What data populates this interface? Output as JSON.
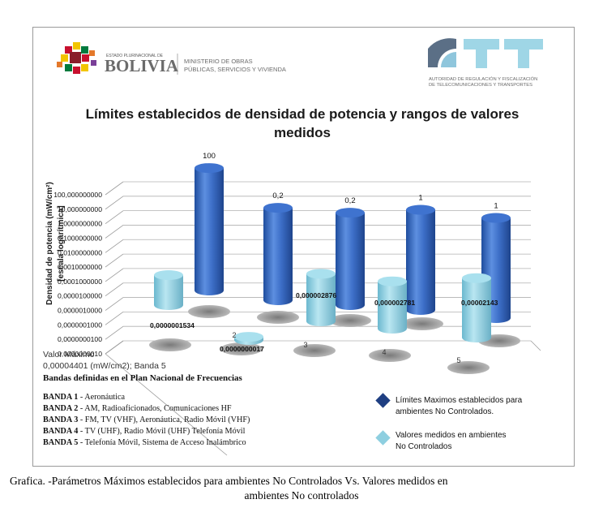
{
  "header": {
    "bolivia_small": "ESTADO PLURINACIONAL DE",
    "bolivia_big": "BOLIVIA",
    "ministry_line1": "MINISTERIO DE OBRAS",
    "ministry_line2": "PÚBLICAS, SERVICIOS Y VIVIENDA",
    "att_logo": "ATT",
    "att_line1": "AUTORIDAD DE REGULACIÓN Y FISCALIZACIÓN",
    "att_line2": "DE TELECOMUNICACIONES Y TRANSPORTES"
  },
  "chart_data": {
    "type": "bar",
    "subtype": "3d-cylinder",
    "title_line1": "Límites establecidos de densidad de potencia y rangos de valores",
    "title_line2": "medidos",
    "ylabel_line1": "Densidad de potencia (mW/cm²)",
    "ylabel_line2": "[escala logarítmica]",
    "yscale": "log",
    "ylim": [
      1e-09,
      100
    ],
    "ytick_labels": [
      "100,000000000",
      "10,000000000",
      "1,0000000000",
      "0,1000000000",
      "0,0100000000",
      "0,0010000000",
      "0,0001000000",
      "0,0000100000",
      "0,0000010000",
      "0,0000001000",
      "0,0000000100",
      "0,0000000010"
    ],
    "categories": [
      "1",
      "2",
      "3",
      "4",
      "5"
    ],
    "series": [
      {
        "name": "Límites  Maximos establecidos para ambientes No Controlados.",
        "color": "#2f5fb8",
        "values": [
          100,
          0.2,
          0.2,
          1,
          1
        ],
        "labels": [
          "100",
          "0,2",
          "0,2",
          "1",
          "1"
        ]
      },
      {
        "name": "Valores medidos en ambientes No Controlados",
        "color": "#8ecfe0",
        "values": [
          1.534e-07,
          1.7e-09,
          2.876e-06,
          2.781e-06,
          2.143e-05
        ],
        "labels": [
          "0,0000001534",
          "0,0000000017",
          "0,000002876",
          "0,000002781",
          "0,00002143"
        ]
      }
    ],
    "grid": true,
    "legend_position": "bottom-right",
    "annotation_line1": "Valor  Máximo",
    "annotation_line2": "0,00004401 (mW/cm2); Banda 5"
  },
  "bands": {
    "title": "Bandas definidas en el Plan Nacional de Frecuencias",
    "items": [
      {
        "name": "BANDA 1",
        "desc": " - Aeronáutica"
      },
      {
        "name": "BANDA 2",
        "desc": " - AM, Radioaficionados, Comunicaciones HF"
      },
      {
        "name": "BANDA 3",
        "desc": " - FM, TV (VHF), Aeronáutica, Radio Móvil (VHF)"
      },
      {
        "name": "BANDA 4",
        "desc": " - TV (UHF), Radio Móvil (UHF) Telefonía Móvil"
      },
      {
        "name": "BANDA 5",
        "desc": " - Telefonía Móvil, Sistema de Acceso Inalámbrico"
      }
    ]
  },
  "caption": {
    "line1": "Grafica. -Parámetros Máximos establecidos para ambientes No Controlados Vs. Valores medidos en",
    "line2": "ambientes No controlados"
  }
}
